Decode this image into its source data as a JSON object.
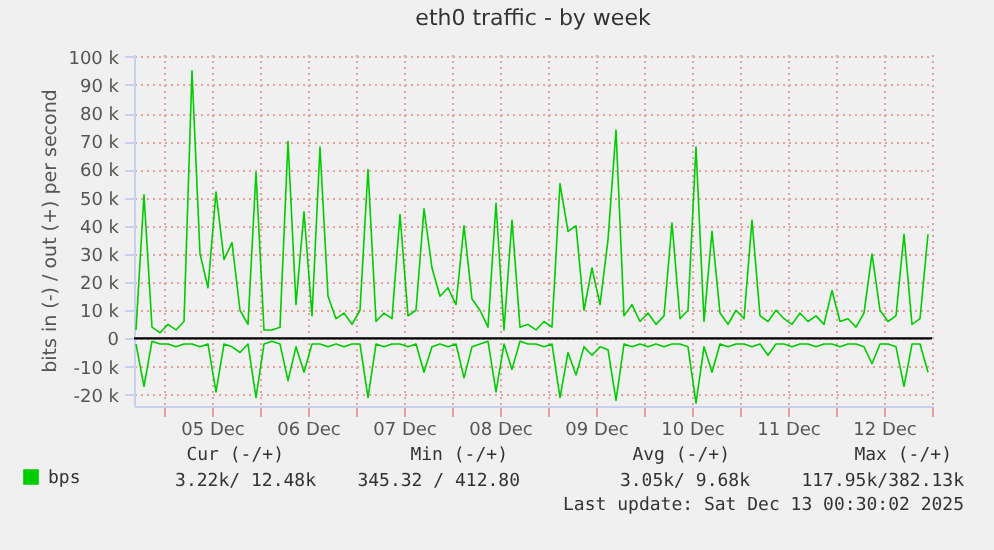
{
  "chart_data": {
    "type": "line",
    "title": "eth0 traffic - by week",
    "ylabel": "bits in (-) / out (+) per second",
    "x": [
      "2025-12-04T17:00",
      "2025-12-04T19:00",
      "2025-12-04T21:00",
      "2025-12-04T23:00",
      "2025-12-05T01:00",
      "2025-12-05T03:00",
      "2025-12-05T05:00",
      "2025-12-05T07:00",
      "2025-12-05T09:00",
      "2025-12-05T11:00",
      "2025-12-05T13:00",
      "2025-12-05T15:00",
      "2025-12-05T17:00",
      "2025-12-05T19:00",
      "2025-12-05T21:00",
      "2025-12-05T23:00",
      "2025-12-06T01:00",
      "2025-12-06T03:00",
      "2025-12-06T05:00",
      "2025-12-06T07:00",
      "2025-12-06T09:00",
      "2025-12-06T11:00",
      "2025-12-06T13:00",
      "2025-12-06T15:00",
      "2025-12-06T17:00",
      "2025-12-06T19:00",
      "2025-12-06T21:00",
      "2025-12-06T23:00",
      "2025-12-07T01:00",
      "2025-12-07T03:00",
      "2025-12-07T05:00",
      "2025-12-07T07:00",
      "2025-12-07T09:00",
      "2025-12-07T11:00",
      "2025-12-07T13:00",
      "2025-12-07T15:00",
      "2025-12-07T17:00",
      "2025-12-07T19:00",
      "2025-12-07T21:00",
      "2025-12-07T23:00",
      "2025-12-08T01:00",
      "2025-12-08T03:00",
      "2025-12-08T05:00",
      "2025-12-08T07:00",
      "2025-12-08T09:00",
      "2025-12-08T11:00",
      "2025-12-08T13:00",
      "2025-12-08T15:00",
      "2025-12-08T17:00",
      "2025-12-08T19:00",
      "2025-12-08T21:00",
      "2025-12-08T23:00",
      "2025-12-09T01:00",
      "2025-12-09T03:00",
      "2025-12-09T05:00",
      "2025-12-09T07:00",
      "2025-12-09T09:00",
      "2025-12-09T11:00",
      "2025-12-09T13:00",
      "2025-12-09T15:00",
      "2025-12-09T17:00",
      "2025-12-09T19:00",
      "2025-12-09T21:00",
      "2025-12-09T23:00",
      "2025-12-10T01:00",
      "2025-12-10T03:00",
      "2025-12-10T05:00",
      "2025-12-10T07:00",
      "2025-12-10T09:00",
      "2025-12-10T11:00",
      "2025-12-10T13:00",
      "2025-12-10T15:00",
      "2025-12-10T17:00",
      "2025-12-10T19:00",
      "2025-12-10T21:00",
      "2025-12-10T23:00",
      "2025-12-11T01:00",
      "2025-12-11T03:00",
      "2025-12-11T05:00",
      "2025-12-11T07:00",
      "2025-12-11T09:00",
      "2025-12-11T11:00",
      "2025-12-11T13:00",
      "2025-12-11T15:00",
      "2025-12-11T17:00",
      "2025-12-11T19:00",
      "2025-12-11T21:00",
      "2025-12-11T23:00",
      "2025-12-12T01:00",
      "2025-12-12T03:00",
      "2025-12-12T05:00",
      "2025-12-12T07:00",
      "2025-12-12T09:00",
      "2025-12-12T11:00",
      "2025-12-12T13:00",
      "2025-12-12T15:00",
      "2025-12-12T17:00",
      "2025-12-12T19:00",
      "2025-12-12T21:00",
      "2025-12-12T23:00"
    ],
    "series": [
      {
        "name": "bps",
        "color": "#00cc00",
        "values": [
          3000,
          51000,
          4000,
          2000,
          5000,
          3000,
          6000,
          95000,
          30000,
          18000,
          52000,
          28000,
          34000,
          10000,
          5000,
          59000,
          3000,
          3000,
          4000,
          70000,
          12000,
          45000,
          8000,
          68000,
          15000,
          7000,
          9000,
          5000,
          10000,
          60000,
          6000,
          9000,
          7000,
          44000,
          8000,
          10000,
          46000,
          25000,
          15000,
          18000,
          12000,
          40000,
          14000,
          10000,
          4000,
          48000,
          3000,
          42000,
          4000,
          5000,
          3000,
          6000,
          4000,
          55000,
          38000,
          40000,
          10000,
          25000,
          12000,
          35000,
          74000,
          8000,
          12000,
          6000,
          9000,
          5000,
          8000,
          41000,
          7000,
          10000,
          68000,
          6000,
          38000,
          9000,
          5000,
          10000,
          7000,
          42000,
          8000,
          6000,
          10000,
          7000,
          5000,
          9000,
          6000,
          8000,
          5000,
          17000,
          6000,
          7000,
          4000,
          9000,
          30000,
          10000,
          6000,
          8000,
          37000,
          5000,
          7000,
          37000
        ]
      },
      {
        "color": "#00cc00",
        "values": [
          -2000,
          -17000,
          -1000,
          -2000,
          -2000,
          -3000,
          -2000,
          -2000,
          -3000,
          -2000,
          -19000,
          -2000,
          -3000,
          -5000,
          -2000,
          -21000,
          -2000,
          -1000,
          -2000,
          -15000,
          -3000,
          -12000,
          -2000,
          -2000,
          -3000,
          -2000,
          -3000,
          -2000,
          -2000,
          -21000,
          -2000,
          -3000,
          -2000,
          -2000,
          -3000,
          -2000,
          -12000,
          -3000,
          -2000,
          -3000,
          -2000,
          -14000,
          -3000,
          -2000,
          -1000,
          -19000,
          -2000,
          -11000,
          -1000,
          -2000,
          -2000,
          -3000,
          -2000,
          -21000,
          -5000,
          -13000,
          -3000,
          -6000,
          -3000,
          -4000,
          -22000,
          -2000,
          -3000,
          -2000,
          -3000,
          -2000,
          -3000,
          -2000,
          -2000,
          -3000,
          -23000,
          -3000,
          -12000,
          -2000,
          -3000,
          -2000,
          -2000,
          -3000,
          -2000,
          -6000,
          -2000,
          -2000,
          -3000,
          -2000,
          -2000,
          -3000,
          -2000,
          -2000,
          -3000,
          -2000,
          -2000,
          -3000,
          -9000,
          -2000,
          -2000,
          -3000,
          -17000,
          -2000,
          -2000,
          -12000
        ]
      }
    ],
    "xlim": [
      "2025-12-04T16:30",
      "2025-12-13T00:00"
    ],
    "xticks": [
      {
        "value": "2025-12-05T00:00",
        "label": null
      },
      {
        "value": "2025-12-05T12:00",
        "label": "05 Dec"
      },
      {
        "value": "2025-12-06T00:00",
        "label": null
      },
      {
        "value": "2025-12-06T12:00",
        "label": "06 Dec"
      },
      {
        "value": "2025-12-07T00:00",
        "label": null
      },
      {
        "value": "2025-12-07T12:00",
        "label": "07 Dec"
      },
      {
        "value": "2025-12-08T00:00",
        "label": null
      },
      {
        "value": "2025-12-08T12:00",
        "label": "08 Dec"
      },
      {
        "value": "2025-12-09T00:00",
        "label": null
      },
      {
        "value": "2025-12-09T12:00",
        "label": "09 Dec"
      },
      {
        "value": "2025-12-10T00:00",
        "label": null
      },
      {
        "value": "2025-12-10T12:00",
        "label": "10 Dec"
      },
      {
        "value": "2025-12-11T00:00",
        "label": null
      },
      {
        "value": "2025-12-11T12:00",
        "label": "11 Dec"
      },
      {
        "value": "2025-12-12T00:00",
        "label": null
      },
      {
        "value": "2025-12-12T12:00",
        "label": "12 Dec"
      },
      {
        "value": "2025-12-13T00:00",
        "label": null
      }
    ],
    "ylim": [
      -24000,
      101000
    ],
    "yticks": [
      {
        "value": -20000,
        "label": "-20 k"
      },
      {
        "value": -10000,
        "label": "-10 k"
      },
      0,
      {
        "value": 10000,
        "label": "10 k"
      },
      {
        "value": 20000,
        "label": "20 k"
      },
      {
        "value": 30000,
        "label": "30 k"
      },
      {
        "value": 40000,
        "label": "40 k"
      },
      {
        "value": 50000,
        "label": "50 k"
      },
      {
        "value": 60000,
        "label": "60 k"
      },
      {
        "value": 70000,
        "label": "70 k"
      },
      {
        "value": 80000,
        "label": "80 k"
      },
      {
        "value": 90000,
        "label": "90 k"
      },
      {
        "value": 100000,
        "label": "100 k"
      }
    ],
    "ref_lines": [
      {
        "axis": "y",
        "value": 0,
        "color": "#000000"
      }
    ],
    "grid": true,
    "legend": "bottom left",
    "marker": "none",
    "line_style": "solid",
    "annotations": [
      "Cur (-/+)",
      "Min (-/+)",
      "Avg (-/+)",
      "Max (-/+)",
      "3.22k/ 12.48k",
      "345.32 / 412.80",
      "3.05k/   9.68k",
      "117.95k/382.13k",
      "Last update: Sat Dec 13 00:30:02 2025"
    ]
  }
}
